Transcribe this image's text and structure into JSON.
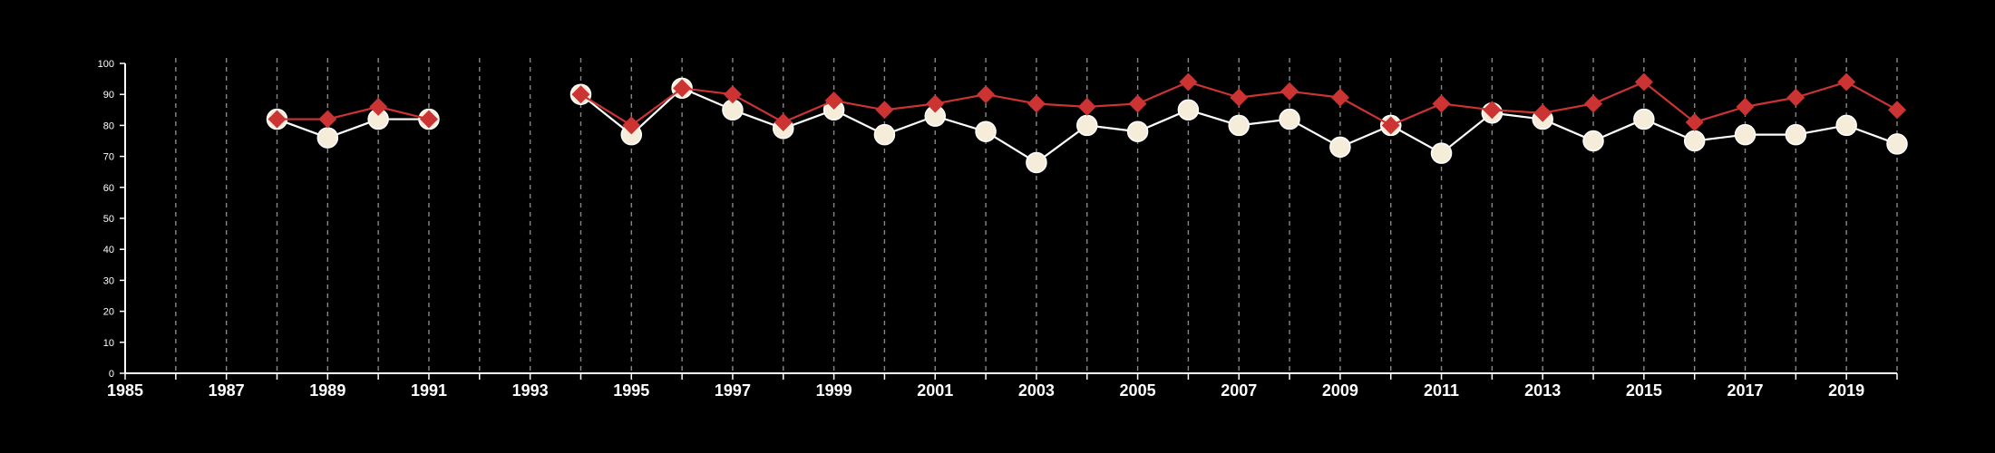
{
  "chart_data": {
    "type": "line",
    "title": "",
    "xlabel": "",
    "ylabel": "",
    "xlim": [
      1985,
      2020
    ],
    "ylim": [
      0,
      100
    ],
    "x_ticks": [
      1985,
      1987,
      1989,
      1991,
      1993,
      1995,
      1997,
      1999,
      2001,
      2003,
      2005,
      2007,
      2009,
      2011,
      2013,
      2015,
      2017,
      2019
    ],
    "y_ticks": [
      0,
      10,
      20,
      30,
      40,
      50,
      60,
      70,
      80,
      90,
      100
    ],
    "grid": "vertical dashed lines at each year",
    "legend": "none",
    "series": [
      {
        "marker": "circle",
        "line_color": "#ffffff",
        "marker_color": "#f5ecd9",
        "points": [
          [
            1988,
            82
          ],
          [
            1989,
            76
          ],
          [
            1990,
            82
          ],
          [
            1991,
            82
          ],
          [
            1994,
            90
          ],
          [
            1995,
            77
          ],
          [
            1996,
            92
          ],
          [
            1997,
            85
          ],
          [
            1998,
            79
          ],
          [
            1999,
            85
          ],
          [
            2000,
            77
          ],
          [
            2001,
            83
          ],
          [
            2002,
            78
          ],
          [
            2003,
            68
          ],
          [
            2004,
            80
          ],
          [
            2005,
            78
          ],
          [
            2006,
            85
          ],
          [
            2007,
            80
          ],
          [
            2008,
            82
          ],
          [
            2009,
            73
          ],
          [
            2010,
            80
          ],
          [
            2011,
            71
          ],
          [
            2012,
            84
          ],
          [
            2013,
            82
          ],
          [
            2014,
            75
          ],
          [
            2015,
            82
          ],
          [
            2016,
            75
          ],
          [
            2017,
            77
          ],
          [
            2018,
            77
          ],
          [
            2019,
            80
          ],
          [
            2020,
            74
          ]
        ]
      },
      {
        "marker": "diamond",
        "line_color": "#cc3333",
        "marker_color": "#cc3333",
        "points": [
          [
            1988,
            82
          ],
          [
            1989,
            82
          ],
          [
            1990,
            86
          ],
          [
            1991,
            82
          ],
          [
            1994,
            90
          ],
          [
            1995,
            80
          ],
          [
            1996,
            92
          ],
          [
            1997,
            90
          ],
          [
            1998,
            81
          ],
          [
            1999,
            88
          ],
          [
            2000,
            85
          ],
          [
            2001,
            87
          ],
          [
            2002,
            90
          ],
          [
            2003,
            87
          ],
          [
            2004,
            86
          ],
          [
            2005,
            87
          ],
          [
            2006,
            94
          ],
          [
            2007,
            89
          ],
          [
            2008,
            91
          ],
          [
            2009,
            89
          ],
          [
            2010,
            80
          ],
          [
            2011,
            87
          ],
          [
            2012,
            85
          ],
          [
            2013,
            84
          ],
          [
            2014,
            87
          ],
          [
            2015,
            94
          ],
          [
            2016,
            81
          ],
          [
            2017,
            86
          ],
          [
            2018,
            89
          ],
          [
            2019,
            94
          ],
          [
            2020,
            85
          ]
        ]
      }
    ]
  }
}
